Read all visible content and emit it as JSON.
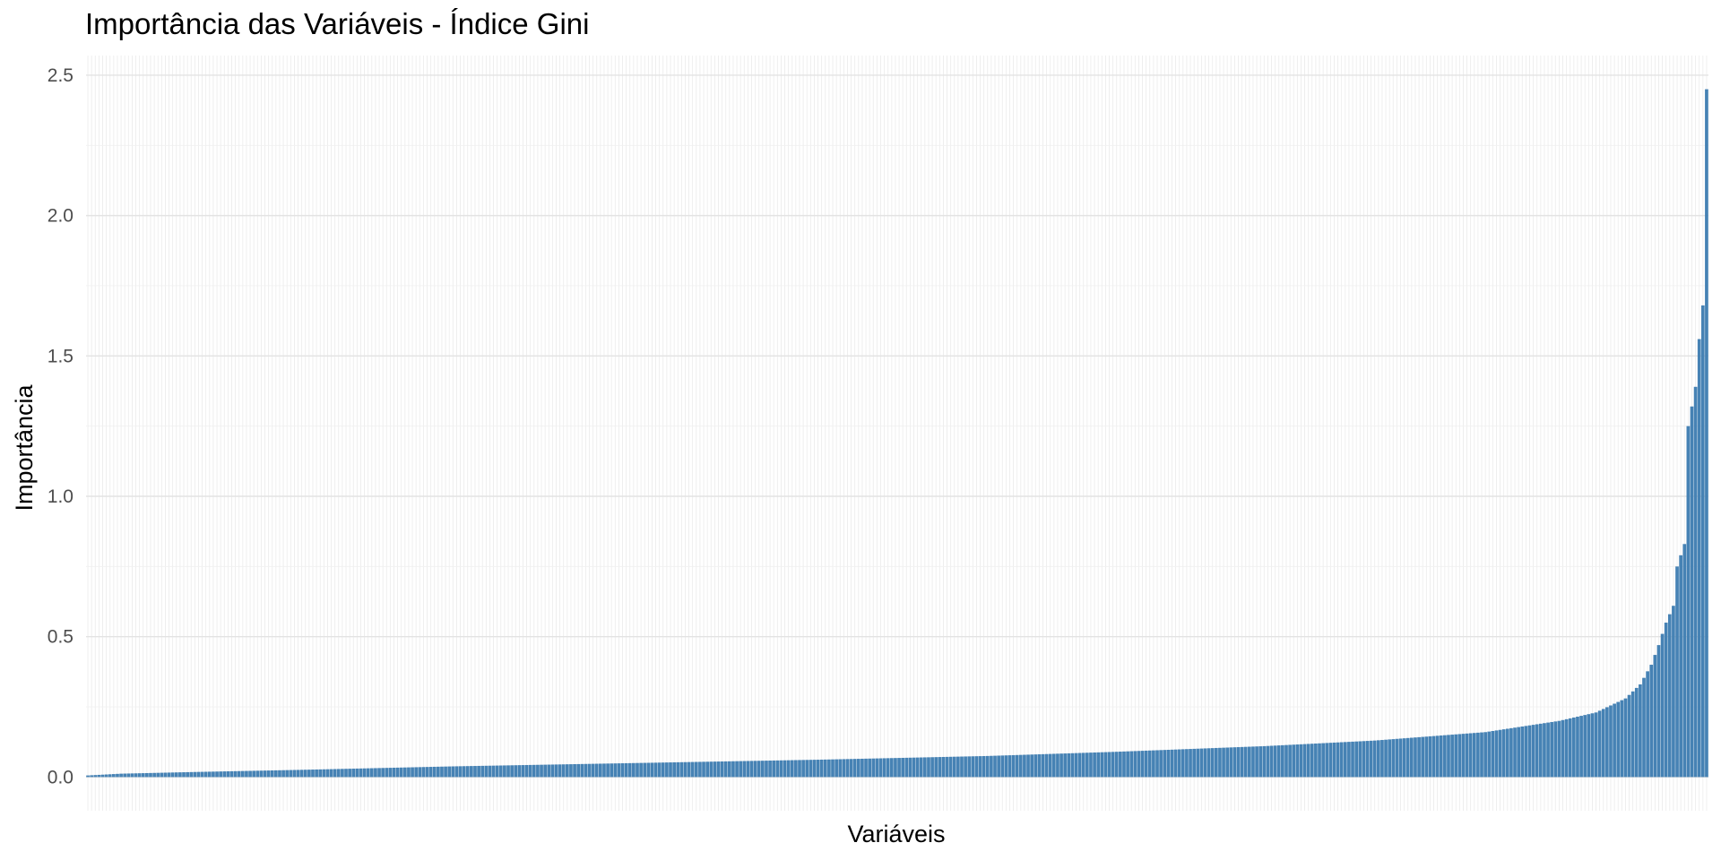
{
  "chart_data": {
    "type": "bar",
    "title": "Importância das Variáveis - Índice Gini",
    "xlabel": "Variáveis",
    "ylabel": "Importância",
    "ylim": [
      -0.12,
      2.57
    ],
    "yticks": [
      "0.0",
      "0.5",
      "1.0",
      "1.5",
      "2.0",
      "2.5"
    ],
    "bar_count": 440,
    "sorted": "ascending",
    "grid": true,
    "legend": "none",
    "color": "#4682B4",
    "profile_points": [
      {
        "rank": 0,
        "value": 0.005
      },
      {
        "rank": 10,
        "value": 0.012
      },
      {
        "rank": 30,
        "value": 0.018
      },
      {
        "rank": 60,
        "value": 0.026
      },
      {
        "rank": 100,
        "value": 0.038
      },
      {
        "rank": 150,
        "value": 0.05
      },
      {
        "rank": 200,
        "value": 0.062
      },
      {
        "rank": 245,
        "value": 0.075
      },
      {
        "rank": 280,
        "value": 0.09
      },
      {
        "rank": 320,
        "value": 0.11
      },
      {
        "rank": 350,
        "value": 0.13
      },
      {
        "rank": 380,
        "value": 0.16
      },
      {
        "rank": 400,
        "value": 0.2
      },
      {
        "rank": 410,
        "value": 0.23
      },
      {
        "rank": 418,
        "value": 0.28
      },
      {
        "rank": 422,
        "value": 0.33
      },
      {
        "rank": 425,
        "value": 0.4
      },
      {
        "rank": 427,
        "value": 0.47
      },
      {
        "rank": 429,
        "value": 0.55
      },
      {
        "rank": 431,
        "value": 0.61
      },
      {
        "rank": 432,
        "value": 0.75
      },
      {
        "rank": 434,
        "value": 0.83
      },
      {
        "rank": 435,
        "value": 1.25
      },
      {
        "rank": 436,
        "value": 1.32
      },
      {
        "rank": 437,
        "value": 1.39
      },
      {
        "rank": 438,
        "value": 1.56
      },
      {
        "rank": 439,
        "value": 1.68
      },
      {
        "rank": 440,
        "value": 2.45
      }
    ]
  }
}
